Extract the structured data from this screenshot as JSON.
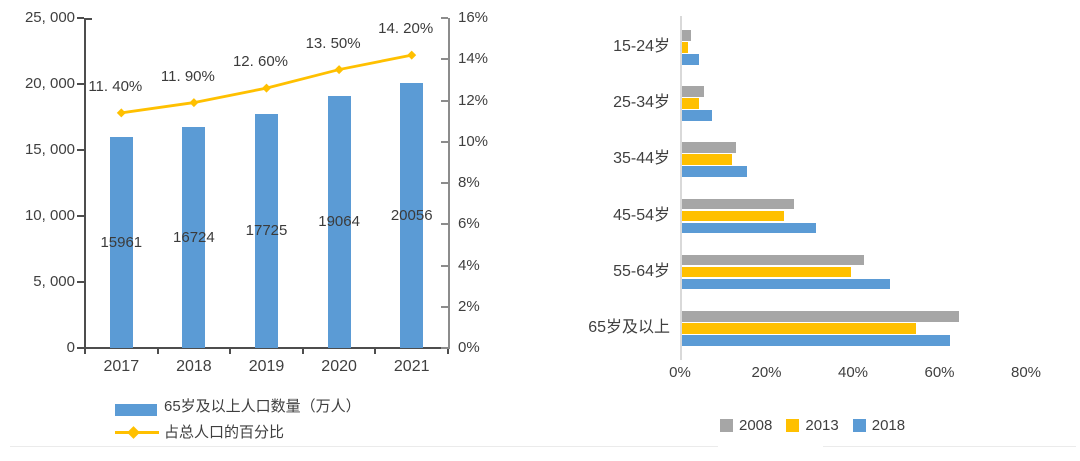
{
  "figure": {
    "background": "#ffffff",
    "accent_colors": {
      "blue": "#5B9BD5",
      "yellow": "#FFC000",
      "gray": "#A6A6A6"
    }
  },
  "chart_data": [
    {
      "type": "combo-bar-line",
      "title": "",
      "categories": [
        "2017",
        "2018",
        "2019",
        "2020",
        "2021"
      ],
      "series": [
        {
          "name": "65岁及以上人口数量（万人）",
          "type": "bar",
          "axis": "left",
          "color": "#5B9BD5",
          "values": [
            15961,
            16724,
            17725,
            19064,
            20056
          ],
          "data_labels": [
            "15961",
            "16724",
            "17725",
            "19064",
            "20056"
          ]
        },
        {
          "name": "占总人口的百分比",
          "type": "line",
          "axis": "right",
          "color": "#FFC000",
          "marker": "diamond",
          "values": [
            11.4,
            11.9,
            12.6,
            13.5,
            14.2
          ],
          "data_labels": [
            "11. 40%",
            "11. 90%",
            "12. 60%",
            "13. 50%",
            "14. 20%"
          ]
        }
      ],
      "left_axis": {
        "min": 0,
        "max": 25000,
        "step": 5000,
        "tick_labels": [
          "0",
          "5, 000",
          "10, 000",
          "15, 000",
          "20, 000",
          "25, 000"
        ]
      },
      "right_axis": {
        "min": 0,
        "max": 16,
        "step": 2,
        "tick_labels": [
          "0%",
          "2%",
          "4%",
          "6%",
          "8%",
          "10%",
          "12%",
          "14%",
          "16%"
        ]
      },
      "grid": false,
      "legend_position": "bottom-left"
    },
    {
      "type": "bar-horizontal-grouped",
      "title": "",
      "categories": [
        "15-24岁",
        "25-34岁",
        "35-44岁",
        "45-54岁",
        "55-64岁",
        "65岁及以上"
      ],
      "series": [
        {
          "name": "2008",
          "color": "#A6A6A6",
          "values": [
            2,
            5,
            12.5,
            26,
            42,
            64
          ]
        },
        {
          "name": "2013",
          "color": "#FFC000",
          "values": [
            1.5,
            4,
            11.5,
            23.5,
            39,
            54
          ]
        },
        {
          "name": "2018",
          "color": "#5B9BD5",
          "values": [
            4,
            7,
            15,
            31,
            48,
            62
          ]
        }
      ],
      "x_axis": {
        "min": 0,
        "max": 80,
        "step": 20,
        "tick_labels": [
          "0%",
          "20%",
          "40%",
          "60%",
          "80%"
        ]
      },
      "grid": false,
      "legend_position": "bottom-center"
    }
  ]
}
